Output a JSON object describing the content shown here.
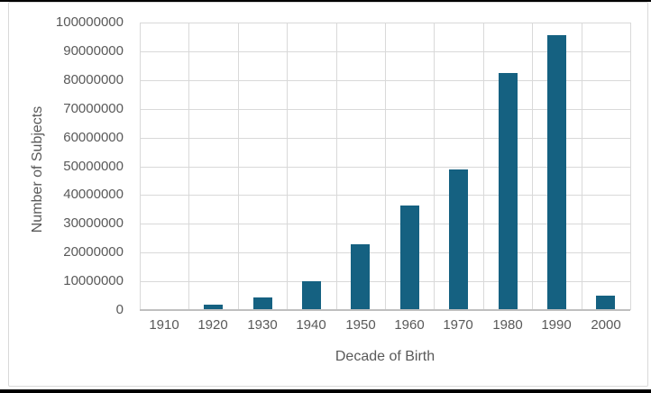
{
  "chart_data": {
    "type": "bar",
    "title": "",
    "xlabel": "Decade of Birth",
    "ylabel": "Number of Subjects",
    "categories": [
      "1910",
      "1920",
      "1930",
      "1940",
      "1950",
      "1960",
      "1970",
      "1980",
      "1990",
      "2000"
    ],
    "values": [
      0,
      2000000,
      4500000,
      10000000,
      23000000,
      36500000,
      49000000,
      82500000,
      95500000,
      5000000
    ],
    "ylim": [
      0,
      100000000
    ],
    "ytick_step": 10000000,
    "yticks": [
      0,
      10000000,
      20000000,
      30000000,
      40000000,
      50000000,
      60000000,
      70000000,
      80000000,
      90000000,
      100000000
    ],
    "grid": true,
    "legend": "none",
    "bar_color": "#156181",
    "grid_color": "#d9d9d9",
    "axis_color": "#bfbfbf",
    "text_color": "#595959",
    "frame_border_color": "#d9d9d9",
    "outer_strip_color": "#000000"
  }
}
